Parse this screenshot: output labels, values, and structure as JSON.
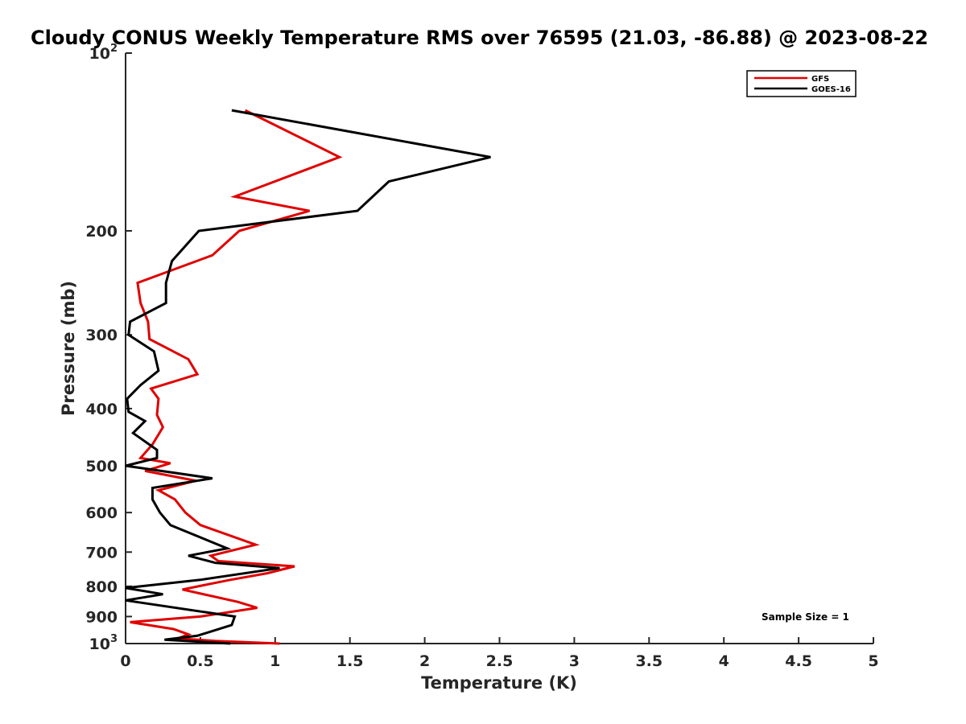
{
  "chart_data": {
    "type": "line",
    "title": "Cloudy CONUS Weekly Temperature RMS over 76595 (21.03, -86.88) @ 2023-08-22",
    "xlabel": "Temperature (K)",
    "ylabel": "Pressure (mb)",
    "xlim": [
      0,
      5
    ],
    "ylim": [
      100,
      1000
    ],
    "y_scale": "log",
    "y_reversed": true,
    "x_ticks": [
      "0",
      "0.5",
      "1",
      "1.5",
      "2",
      "2.5",
      "3",
      "3.5",
      "4",
      "4.5",
      "5"
    ],
    "y_ticks": [
      {
        "value": 200,
        "label": "200"
      },
      {
        "value": 300,
        "label": "300"
      },
      {
        "value": 400,
        "label": "400"
      },
      {
        "value": 500,
        "label": "500"
      },
      {
        "value": 600,
        "label": "600"
      },
      {
        "value": 700,
        "label": "700"
      },
      {
        "value": 800,
        "label": "800"
      },
      {
        "value": 900,
        "label": "900"
      }
    ],
    "y_tick_top": {
      "value": 100,
      "base": "10",
      "exp": "2"
    },
    "y_tick_bottom": {
      "value": 1000,
      "base": "10",
      "exp": "3"
    },
    "legend_position": "top-right",
    "series": [
      {
        "name": "GFS",
        "color": "#e00000",
        "points": [
          [
            0.8,
            125
          ],
          [
            1.43,
            150
          ],
          [
            0.73,
            175
          ],
          [
            1.23,
            185
          ],
          [
            0.76,
            200
          ],
          [
            0.58,
            220
          ],
          [
            0.08,
            245
          ],
          [
            0.1,
            265
          ],
          [
            0.15,
            285
          ],
          [
            0.16,
            305
          ],
          [
            0.42,
            330
          ],
          [
            0.48,
            350
          ],
          [
            0.17,
            370
          ],
          [
            0.22,
            385
          ],
          [
            0.21,
            410
          ],
          [
            0.25,
            430
          ],
          [
            0.18,
            460
          ],
          [
            0.1,
            485
          ],
          [
            0.3,
            495
          ],
          [
            0.13,
            510
          ],
          [
            0.47,
            530
          ],
          [
            0.22,
            550
          ],
          [
            0.33,
            570
          ],
          [
            0.4,
            600
          ],
          [
            0.5,
            630
          ],
          [
            0.87,
            680
          ],
          [
            0.57,
            710
          ],
          [
            0.62,
            725
          ],
          [
            1.13,
            740
          ],
          [
            0.95,
            760
          ],
          [
            0.7,
            780
          ],
          [
            0.38,
            810
          ],
          [
            0.75,
            850
          ],
          [
            0.88,
            870
          ],
          [
            0.5,
            900
          ],
          [
            0.03,
            920
          ],
          [
            0.32,
            945
          ],
          [
            0.42,
            965
          ],
          [
            0.35,
            980
          ],
          [
            0.6,
            990
          ],
          [
            1.03,
            1000
          ]
        ]
      },
      {
        "name": "GOES-16",
        "color": "#000000",
        "points": [
          [
            0.71,
            125
          ],
          [
            2.44,
            150
          ],
          [
            1.76,
            165
          ],
          [
            1.55,
            185
          ],
          [
            0.49,
            200
          ],
          [
            0.31,
            225
          ],
          [
            0.27,
            245
          ],
          [
            0.27,
            265
          ],
          [
            0.03,
            285
          ],
          [
            0.02,
            300
          ],
          [
            0.19,
            320
          ],
          [
            0.22,
            345
          ],
          [
            0.1,
            365
          ],
          [
            0.01,
            385
          ],
          [
            0.02,
            405
          ],
          [
            0.13,
            420
          ],
          [
            0.05,
            440
          ],
          [
            0.21,
            470
          ],
          [
            0.21,
            485
          ],
          [
            0.0,
            500
          ],
          [
            0.58,
            525
          ],
          [
            0.18,
            545
          ],
          [
            0.18,
            570
          ],
          [
            0.23,
            600
          ],
          [
            0.3,
            630
          ],
          [
            0.68,
            690
          ],
          [
            0.42,
            710
          ],
          [
            0.6,
            730
          ],
          [
            1.03,
            745
          ],
          [
            0.5,
            780
          ],
          [
            0.0,
            805
          ],
          [
            0.25,
            825
          ],
          [
            0.0,
            845
          ],
          [
            0.73,
            900
          ],
          [
            0.71,
            930
          ],
          [
            0.48,
            970
          ],
          [
            0.26,
            985
          ],
          [
            0.7,
            1000
          ]
        ]
      }
    ],
    "annotations": [
      "Sample Size = 1"
    ]
  }
}
